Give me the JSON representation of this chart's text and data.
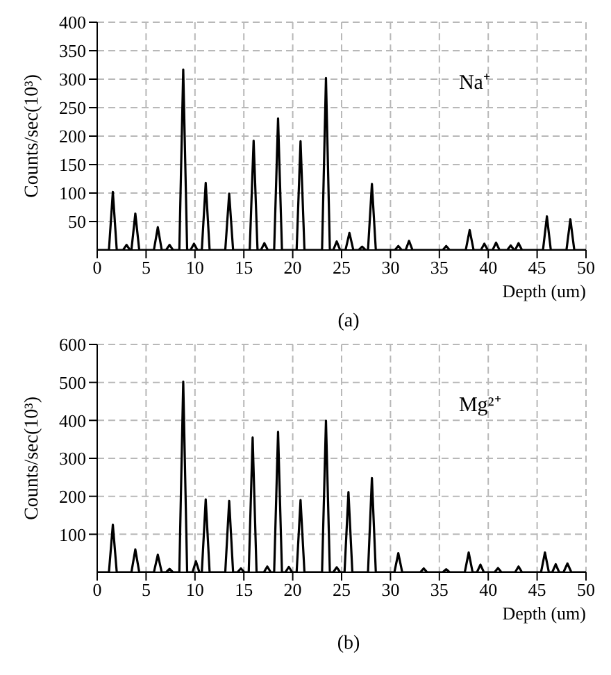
{
  "chart_data": [
    {
      "type": "line",
      "xlabel": "Depth (um)",
      "ylabel": "Counts/sec(10³)",
      "annotations": [
        "(a)"
      ],
      "xlim": [
        0,
        50
      ],
      "xticks": [
        0,
        5,
        10,
        15,
        20,
        25,
        30,
        35,
        40,
        45,
        50
      ],
      "ylim": [
        0,
        400
      ],
      "yticks": [
        50,
        100,
        150,
        200,
        250,
        300,
        350,
        400
      ],
      "grid": true,
      "marker": "none",
      "line_style": "solid",
      "series": [
        {
          "name": "Na⁺",
          "color": "#000000",
          "x": [
            0,
            1.2,
            1.6,
            2.0,
            2.65,
            3.0,
            3.35,
            3.5,
            3.9,
            4.3,
            5.8,
            6.2,
            6.6,
            7.05,
            7.4,
            7.75,
            8.4,
            8.8,
            9.2,
            9.55,
            9.9,
            10.25,
            10.7,
            11.1,
            11.5,
            13.1,
            13.5,
            13.9,
            15.6,
            16.0,
            16.4,
            16.75,
            17.1,
            17.45,
            18.1,
            18.5,
            18.9,
            20.4,
            20.8,
            21.2,
            23.0,
            23.4,
            23.8,
            24.15,
            24.5,
            24.85,
            25.4,
            25.8,
            26.2,
            26.75,
            27.1,
            27.45,
            27.7,
            28.1,
            28.5,
            30.45,
            30.8,
            31.15,
            31.55,
            31.9,
            32.25,
            35.35,
            35.7,
            36.05,
            37.7,
            38.1,
            38.5,
            39.25,
            39.6,
            39.95,
            40.45,
            40.8,
            41.15,
            41.95,
            42.3,
            42.65,
            42.75,
            43.1,
            43.45,
            45.6,
            46.0,
            46.4,
            48.0,
            48.4,
            48.8,
            50
          ],
          "values": [
            0,
            0,
            102,
            0,
            0,
            9,
            0,
            0,
            64,
            0,
            0,
            40,
            0,
            0,
            9,
            0,
            0,
            317,
            0,
            0,
            11,
            0,
            0,
            118,
            0,
            0,
            99,
            0,
            0,
            192,
            0,
            0,
            12,
            0,
            0,
            231,
            0,
            0,
            191,
            0,
            0,
            302,
            0,
            0,
            15,
            0,
            0,
            30,
            0,
            0,
            6,
            0,
            0,
            116,
            0,
            0,
            7,
            0,
            0,
            16,
            0,
            0,
            7,
            0,
            0,
            35,
            0,
            0,
            11,
            0,
            0,
            13,
            0,
            0,
            8,
            0,
            0,
            12,
            0,
            0,
            59,
            0,
            0,
            54,
            0,
            0
          ]
        }
      ]
    },
    {
      "type": "line",
      "xlabel": "Depth (um)",
      "ylabel": "Counts/sec(10³)",
      "annotations": [
        "(b)"
      ],
      "xlim": [
        0,
        50
      ],
      "xticks": [
        0,
        5,
        10,
        15,
        20,
        25,
        30,
        35,
        40,
        45,
        50
      ],
      "ylim": [
        0,
        600
      ],
      "yticks": [
        100,
        200,
        300,
        400,
        500,
        600
      ],
      "grid": true,
      "marker": "none",
      "line_style": "solid",
      "series": [
        {
          "name": "Mg²⁺",
          "color": "#000000",
          "x": [
            0,
            1.2,
            1.6,
            2.0,
            3.5,
            3.9,
            4.3,
            5.8,
            6.2,
            6.6,
            7.05,
            7.4,
            7.75,
            8.4,
            8.8,
            9.2,
            9.75,
            10.1,
            10.45,
            10.7,
            11.1,
            11.5,
            13.1,
            13.5,
            13.9,
            14.35,
            14.7,
            15.05,
            15.5,
            15.9,
            16.3,
            17.05,
            17.4,
            17.75,
            18.1,
            18.5,
            18.9,
            19.25,
            19.6,
            19.95,
            20.4,
            20.8,
            21.2,
            23.0,
            23.4,
            23.8,
            24.15,
            24.5,
            24.85,
            25.3,
            25.7,
            26.1,
            27.7,
            28.1,
            28.5,
            30.4,
            30.8,
            31.2,
            33.05,
            33.4,
            33.75,
            35.35,
            35.7,
            36.05,
            37.6,
            38.0,
            38.4,
            38.85,
            39.2,
            39.55,
            40.65,
            41.0,
            41.35,
            42.75,
            43.1,
            43.45,
            45.4,
            45.8,
            46.2,
            46.55,
            46.9,
            47.25,
            47.7,
            48.1,
            48.5,
            50
          ],
          "values": [
            0,
            0,
            125,
            0,
            0,
            60,
            0,
            0,
            46,
            0,
            0,
            9,
            0,
            0,
            502,
            0,
            0,
            29,
            0,
            0,
            192,
            0,
            0,
            188,
            0,
            0,
            10,
            0,
            0,
            355,
            0,
            0,
            15,
            0,
            0,
            370,
            0,
            0,
            14,
            0,
            0,
            190,
            0,
            0,
            399,
            0,
            0,
            13,
            0,
            0,
            211,
            0,
            0,
            248,
            0,
            0,
            50,
            0,
            0,
            10,
            0,
            0,
            8,
            0,
            0,
            52,
            0,
            0,
            20,
            0,
            0,
            11,
            0,
            0,
            15,
            0,
            0,
            52,
            0,
            0,
            21,
            0,
            0,
            23,
            0,
            0
          ]
        }
      ]
    }
  ]
}
